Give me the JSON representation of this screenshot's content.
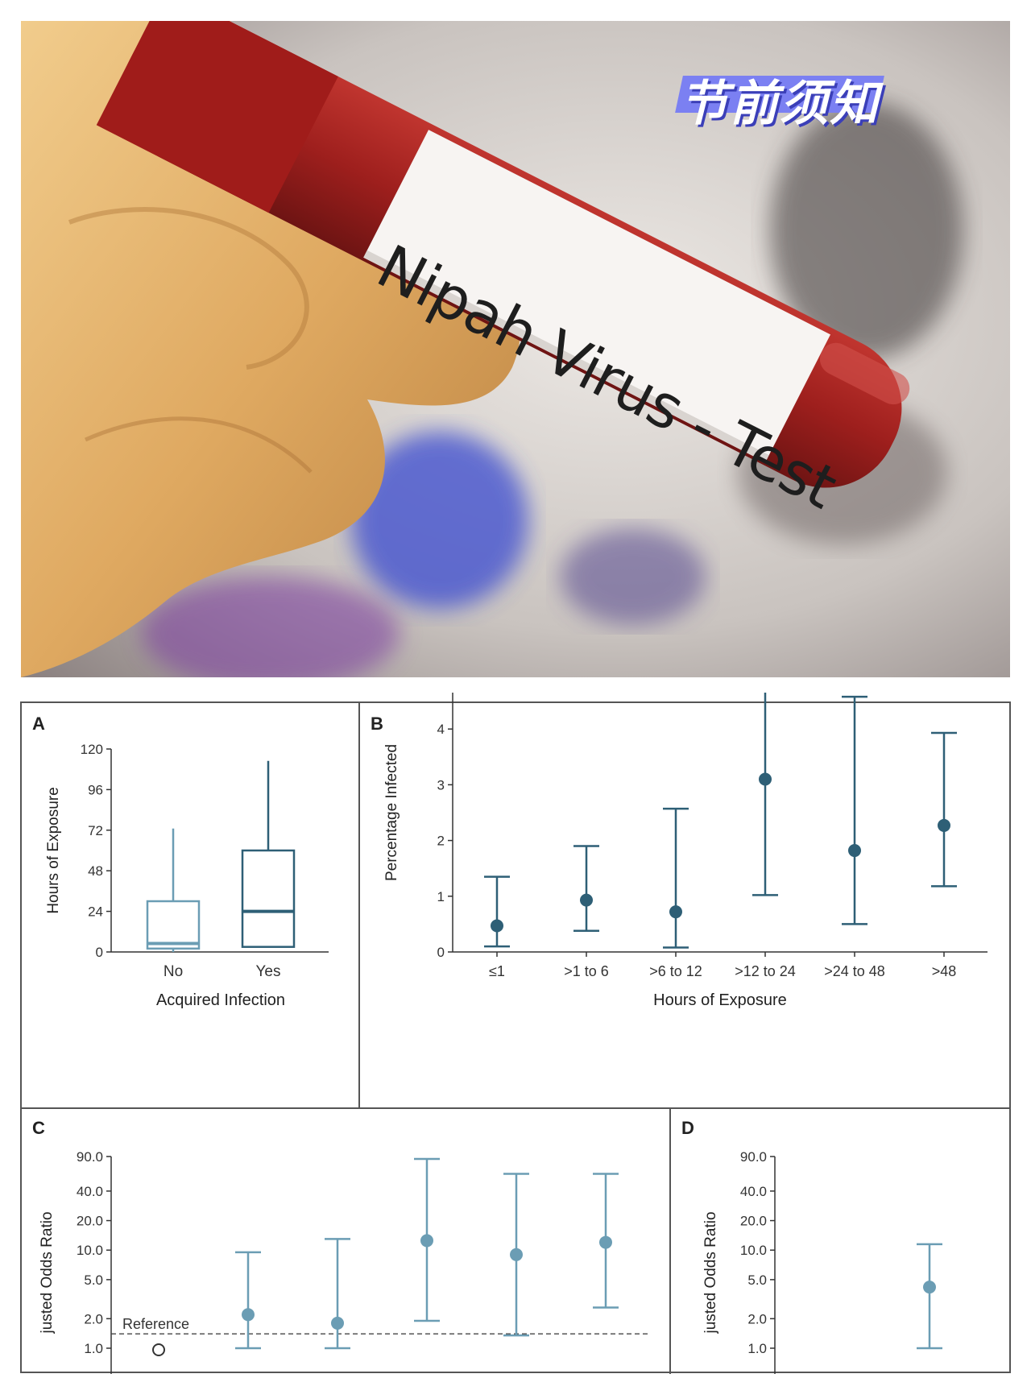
{
  "photo": {
    "label_text": "Nipah Virus - Test",
    "badge_text": "节前须知"
  },
  "colors": {
    "dark": "#2e5f76",
    "light": "#6b9db4",
    "axis": "#333333"
  },
  "chart_data": [
    {
      "panel": "A",
      "type": "box",
      "xlabel": "Acquired Infection",
      "ylabel": "Hours of Exposure",
      "ylim": [
        0,
        120
      ],
      "yticks": [
        "120",
        "96",
        "72",
        "48",
        "24",
        "0"
      ],
      "categories": [
        "No",
        "Yes"
      ],
      "boxes": [
        {
          "category": "No",
          "min": 0,
          "q1": 2,
          "median": 5,
          "q3": 30,
          "max": 73
        },
        {
          "category": "Yes",
          "min": 3,
          "q1": 3,
          "median": 24,
          "q3": 60,
          "max": 113
        }
      ]
    },
    {
      "panel": "B",
      "type": "scatter",
      "xlabel": "Hours of Exposure",
      "ylabel": "Percentage Infected",
      "ylim": [
        0,
        5
      ],
      "yticks": [
        "5",
        "4",
        "3",
        "2",
        "1",
        "0"
      ],
      "categories": [
        "≤1",
        ">1 to 6",
        ">6 to 12",
        ">12 to 24",
        ">24 to 48",
        ">48"
      ],
      "points": [
        {
          "value": 0.47,
          "low": 0.1,
          "high": 1.35
        },
        {
          "value": 0.93,
          "low": 0.38,
          "high": 1.9
        },
        {
          "value": 0.72,
          "low": 0.08,
          "high": 2.57
        },
        {
          "value": 3.1,
          "low": 1.02,
          "high": 5.0,
          "arrow": true
        },
        {
          "value": 1.82,
          "low": 0.5,
          "high": 4.58
        },
        {
          "value": 2.27,
          "low": 1.18,
          "high": 3.93
        }
      ]
    },
    {
      "panel": "C",
      "type": "scatter",
      "ylabel": "justed Odds Ratio",
      "yscale": "log",
      "yticks": [
        "90.0",
        "40.0",
        "20.0",
        "10.0",
        "5.0",
        "2.0",
        "1.0"
      ],
      "reference_label": "Reference",
      "reference_value": 1.4,
      "points": [
        {
          "value": 1.0,
          "reference": true
        },
        {
          "value": 2.2,
          "low": 1.0,
          "high": 9.5
        },
        {
          "value": 1.8,
          "low": 1.0,
          "high": 13.0
        },
        {
          "value": 12.5,
          "low": 1.9,
          "high": 85.0
        },
        {
          "value": 9.0,
          "low": 1.35,
          "high": 60.0
        },
        {
          "value": 12.0,
          "low": 2.6,
          "high": 60.0
        }
      ]
    },
    {
      "panel": "D",
      "type": "scatter",
      "ylabel": "justed Odds Ratio",
      "yscale": "log",
      "yticks": [
        "90.0",
        "40.0",
        "20.0",
        "10.0",
        "5.0",
        "2.0",
        "1.0"
      ],
      "points": [
        {
          "value": 4.2,
          "low": 1.0,
          "high": 11.5
        }
      ]
    }
  ]
}
